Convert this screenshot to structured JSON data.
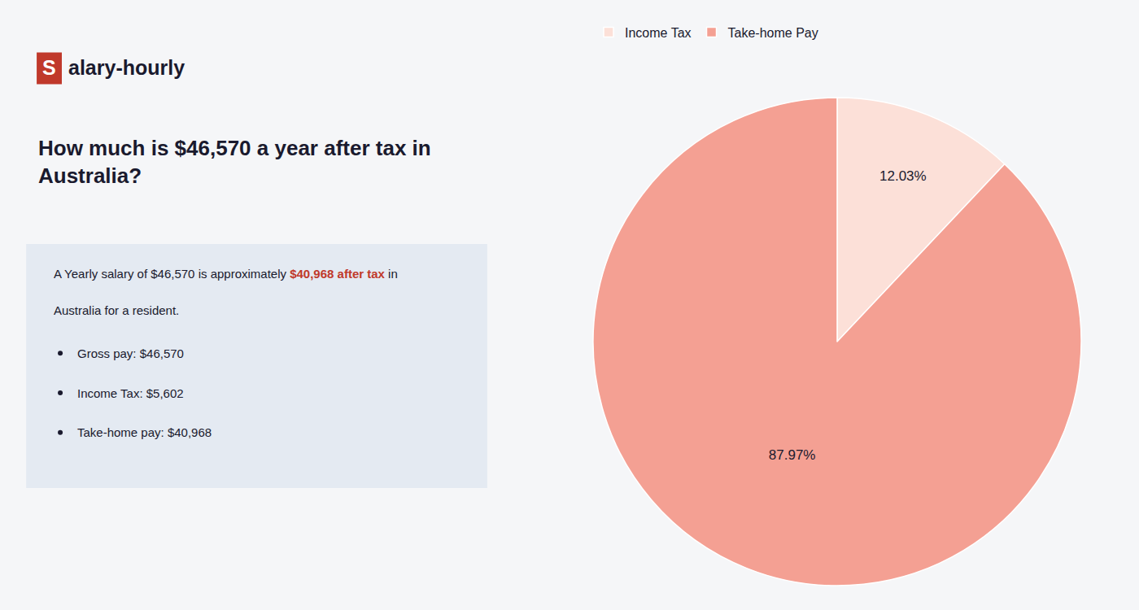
{
  "chart_data": {
    "type": "pie",
    "title": "How much is $46,570 a year after tax in\nAustralia?",
    "categories": [
      "Income Tax",
      "Take-home Pay"
    ],
    "values": [
      12.03,
      87.97
    ],
    "value_labels": [
      "12.03%",
      "87.97%"
    ],
    "colors": [
      "#fce0d8",
      "#f4a093"
    ],
    "data_labels": true,
    "legend": "upper left",
    "annotations": [
      "S",
      "alary-hourly",
      "A Yearly salary of $46,570 is approximately ",
      "$40,968 after tax",
      " in",
      "Australia for a resident.",
      "Gross pay: $46,570",
      "Income Tax: $5,602",
      "Take-home pay: $40,968"
    ]
  }
}
